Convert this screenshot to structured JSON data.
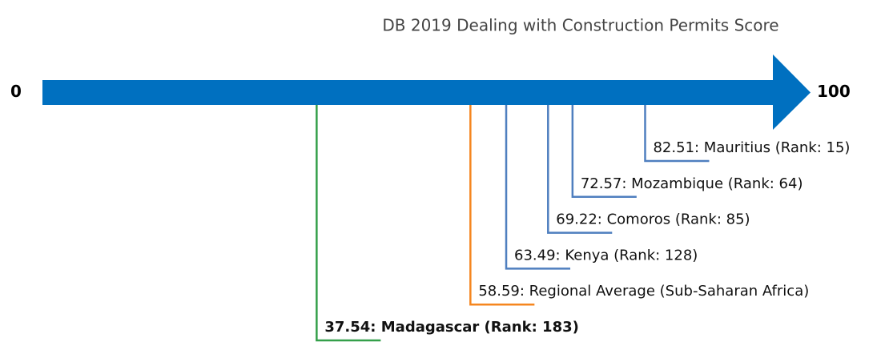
{
  "chart_data": {
    "type": "arrow",
    "title": "DB 2019 Dealing with Construction Permits Score",
    "xlim": [
      0,
      100
    ],
    "xticks": [
      0,
      100
    ],
    "arrow_color": "#0070c0",
    "values": [
      82.51,
      72.57,
      69.22,
      63.49,
      58.59,
      37.54
    ],
    "value_labels": [
      "82.51: Mauritius (Rank: 15)",
      "72.57: Mozambique (Rank: 64)",
      "69.22: Comoros (Rank: 85)",
      "63.49: Kenya (Rank: 128)",
      "58.59: Regional Average (Sub-Saharan Africa)",
      "37.54: Madagascar (Rank: 183)"
    ],
    "colors": [
      "#4f7fbf",
      "#4f7fbf",
      "#4f7fbf",
      "#4f7fbf",
      "#f5861f",
      "#34a04a"
    ],
    "bold": [
      false,
      false,
      false,
      false,
      false,
      true
    ]
  }
}
